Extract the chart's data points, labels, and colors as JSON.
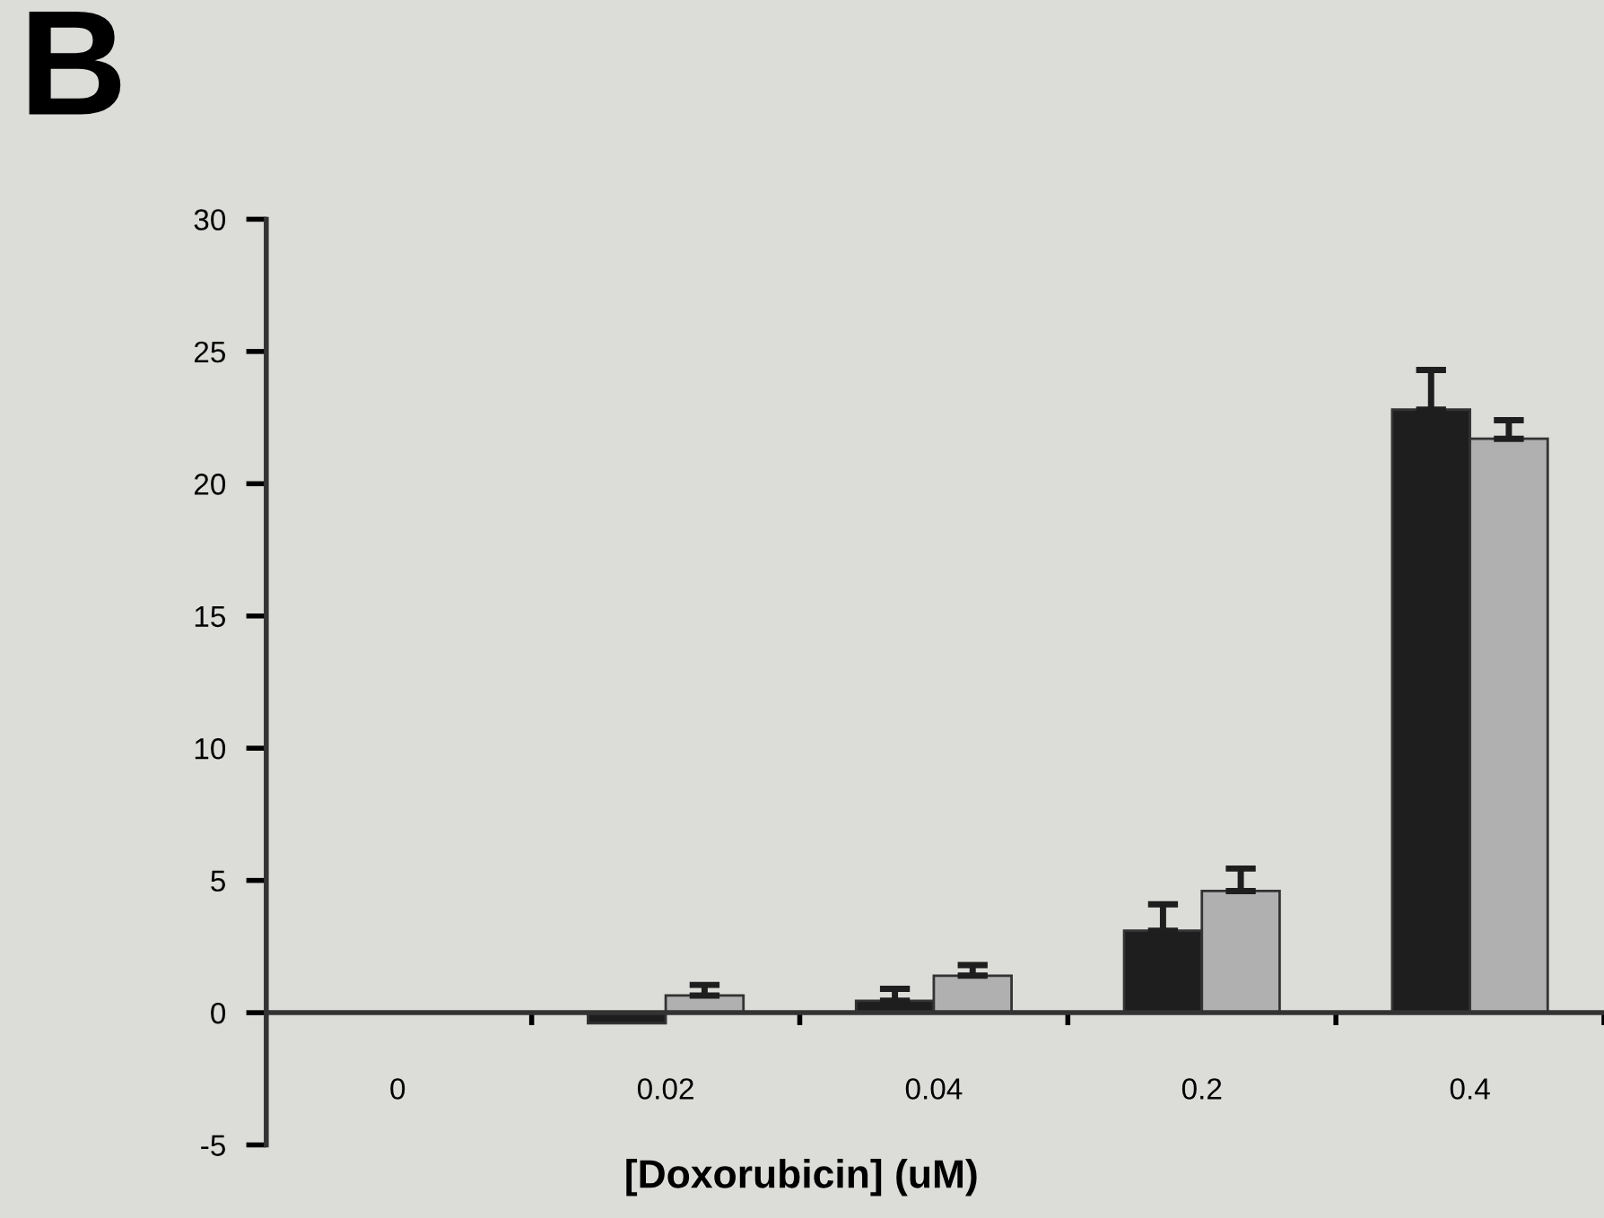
{
  "chart_data": {
    "type": "bar",
    "xlabel": "[Doxorubicin] (uM)",
    "annotations": [
      "B"
    ],
    "categories": [
      "0",
      "0.02",
      "0.04",
      "0.2",
      "0.4"
    ],
    "series": [
      {
        "color": "#1e1e1e",
        "values": [
          0,
          -0.4,
          0.45,
          3.1,
          22.8
        ],
        "errors": [
          null,
          null,
          0.45,
          1.0,
          1.5
        ]
      },
      {
        "color": "#b0b0b0",
        "values": [
          0,
          0.65,
          1.4,
          4.6,
          21.7
        ],
        "errors": [
          null,
          0.4,
          0.4,
          0.85,
          0.7
        ]
      }
    ],
    "ylim": [
      -5,
      30
    ],
    "yticks": [
      -5,
      0,
      5,
      10,
      15,
      20,
      25,
      30
    ],
    "grid": false,
    "legend": false
  }
}
